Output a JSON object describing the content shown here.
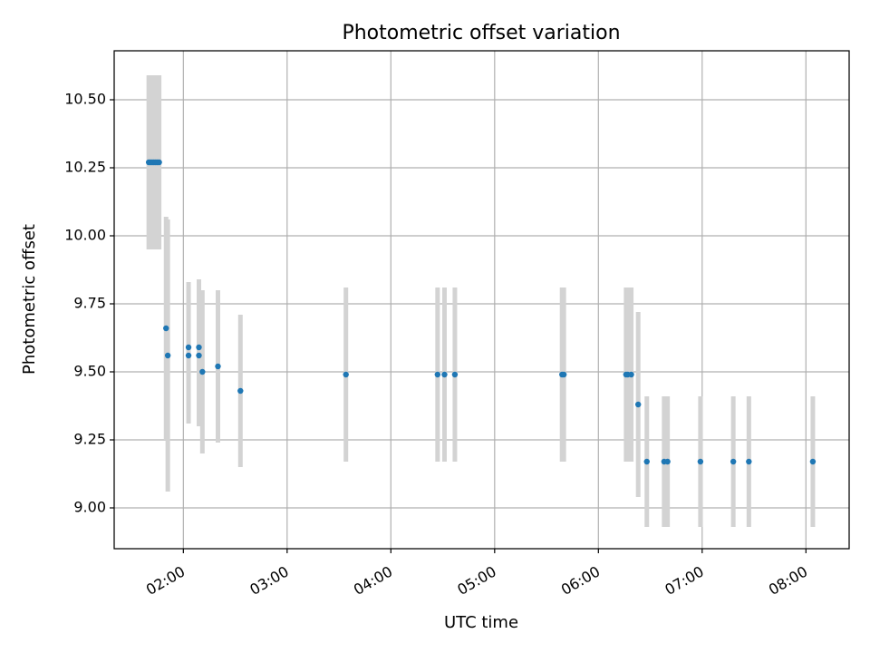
{
  "chart_data": {
    "type": "scatter",
    "title": "Photometric offset variation",
    "xlabel": "UTC time",
    "ylabel": "Photometric offset",
    "xlim": [
      "01:20",
      "08:25"
    ],
    "ylim": [
      8.85,
      10.68
    ],
    "grid": true,
    "x_ticks": [
      "02:00",
      "03:00",
      "04:00",
      "05:00",
      "06:00",
      "07:00",
      "08:00"
    ],
    "y_ticks": [
      "9.00",
      "9.25",
      "9.50",
      "9.75",
      "10.00",
      "10.25",
      "10.50"
    ],
    "colors": {
      "point": "#1f77b4",
      "error_bar": "#d3d3d3",
      "grid": "#b0b0b0"
    },
    "points": [
      {
        "x": "01:40",
        "y": 10.27,
        "err": 0.32
      },
      {
        "x": "01:41",
        "y": 10.27,
        "err": 0.32
      },
      {
        "x": "01:42",
        "y": 10.27,
        "err": 0.32
      },
      {
        "x": "01:43",
        "y": 10.27,
        "err": 0.32
      },
      {
        "x": "01:44",
        "y": 10.27,
        "err": 0.32
      },
      {
        "x": "01:45",
        "y": 10.27,
        "err": 0.32
      },
      {
        "x": "01:46",
        "y": 10.27,
        "err": 0.32
      },
      {
        "x": "01:50",
        "y": 9.66,
        "err": 0.41
      },
      {
        "x": "01:51",
        "y": 9.56,
        "err": 0.5
      },
      {
        "x": "02:03",
        "y": 9.59,
        "err": 0.24
      },
      {
        "x": "02:03",
        "y": 9.56,
        "err": 0.25
      },
      {
        "x": "02:09",
        "y": 9.59,
        "err": 0.25
      },
      {
        "x": "02:09",
        "y": 9.56,
        "err": 0.26
      },
      {
        "x": "02:11",
        "y": 9.5,
        "err": 0.3
      },
      {
        "x": "02:20",
        "y": 9.52,
        "err": 0.28
      },
      {
        "x": "02:33",
        "y": 9.43,
        "err": 0.28
      },
      {
        "x": "03:34",
        "y": 9.49,
        "err": 0.32
      },
      {
        "x": "04:27",
        "y": 9.49,
        "err": 0.32
      },
      {
        "x": "04:31",
        "y": 9.49,
        "err": 0.32
      },
      {
        "x": "04:37",
        "y": 9.49,
        "err": 0.32
      },
      {
        "x": "05:39",
        "y": 9.49,
        "err": 0.32
      },
      {
        "x": "05:40",
        "y": 9.49,
        "err": 0.32
      },
      {
        "x": "06:16",
        "y": 9.49,
        "err": 0.32
      },
      {
        "x": "06:17",
        "y": 9.49,
        "err": 0.32
      },
      {
        "x": "06:19",
        "y": 9.49,
        "err": 0.32
      },
      {
        "x": "06:23",
        "y": 9.38,
        "err": 0.34
      },
      {
        "x": "06:28",
        "y": 9.17,
        "err": 0.24
      },
      {
        "x": "06:38",
        "y": 9.17,
        "err": 0.24
      },
      {
        "x": "06:40",
        "y": 9.17,
        "err": 0.24
      },
      {
        "x": "06:59",
        "y": 9.17,
        "err": 0.24
      },
      {
        "x": "07:18",
        "y": 9.17,
        "err": 0.24
      },
      {
        "x": "07:27",
        "y": 9.17,
        "err": 0.24
      },
      {
        "x": "08:04",
        "y": 9.17,
        "err": 0.24
      }
    ]
  }
}
